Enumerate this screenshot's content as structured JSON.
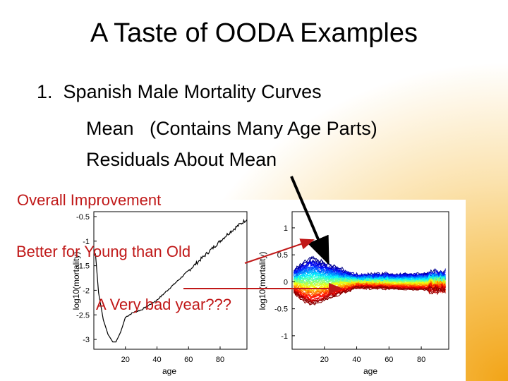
{
  "slide": {
    "title": "A Taste of OODA Examples",
    "item_number": "1.",
    "item_text": "Spanish Male Mortality Curves",
    "sub1": "Mean   (Contains Many Age Parts)",
    "sub2": "Residuals About Mean"
  },
  "annotations": {
    "overall": "Overall Improvement",
    "young": "Better for Young than Old",
    "bad_year": "A Very bad year???"
  },
  "colors": {
    "annotation": "#c01818",
    "arrow_red": "#c01818",
    "arrow_black": "#000000",
    "mean_curve": "#000000",
    "residual_colormap": "jet (blue=early years, red=late years)"
  },
  "chart_data": [
    {
      "type": "line",
      "name": "mean",
      "xlabel": "age",
      "ylabel": "log10(mortality)",
      "xlim": [
        0,
        97
      ],
      "ylim": [
        -3.2,
        -0.4
      ],
      "x_ticks": [
        20,
        40,
        60,
        80
      ],
      "y_ticks": [
        -0.5,
        -1,
        -1.5,
        -2,
        -2.5,
        -3
      ],
      "x": [
        1,
        3,
        6,
        9,
        12,
        14,
        17,
        20,
        25,
        30,
        35,
        40,
        45,
        50,
        55,
        60,
        65,
        70,
        75,
        80,
        85,
        90,
        95,
        97
      ],
      "y": [
        -1.25,
        -2.05,
        -2.6,
        -2.9,
        -3.05,
        -3.05,
        -2.85,
        -2.55,
        -2.45,
        -2.4,
        -2.3,
        -2.2,
        -2.05,
        -1.9,
        -1.75,
        -1.6,
        -1.45,
        -1.3,
        -1.15,
        -1.0,
        -0.85,
        -0.72,
        -0.6,
        -0.55
      ]
    },
    {
      "type": "line",
      "name": "residuals",
      "xlabel": "age",
      "ylabel": "log10(mortality)",
      "xlim": [
        0,
        97
      ],
      "ylim": [
        -1.25,
        1.3
      ],
      "x_ticks": [
        20,
        40,
        60,
        80
      ],
      "y_ticks": [
        1,
        0.5,
        0,
        -0.5,
        -1
      ]
    }
  ]
}
